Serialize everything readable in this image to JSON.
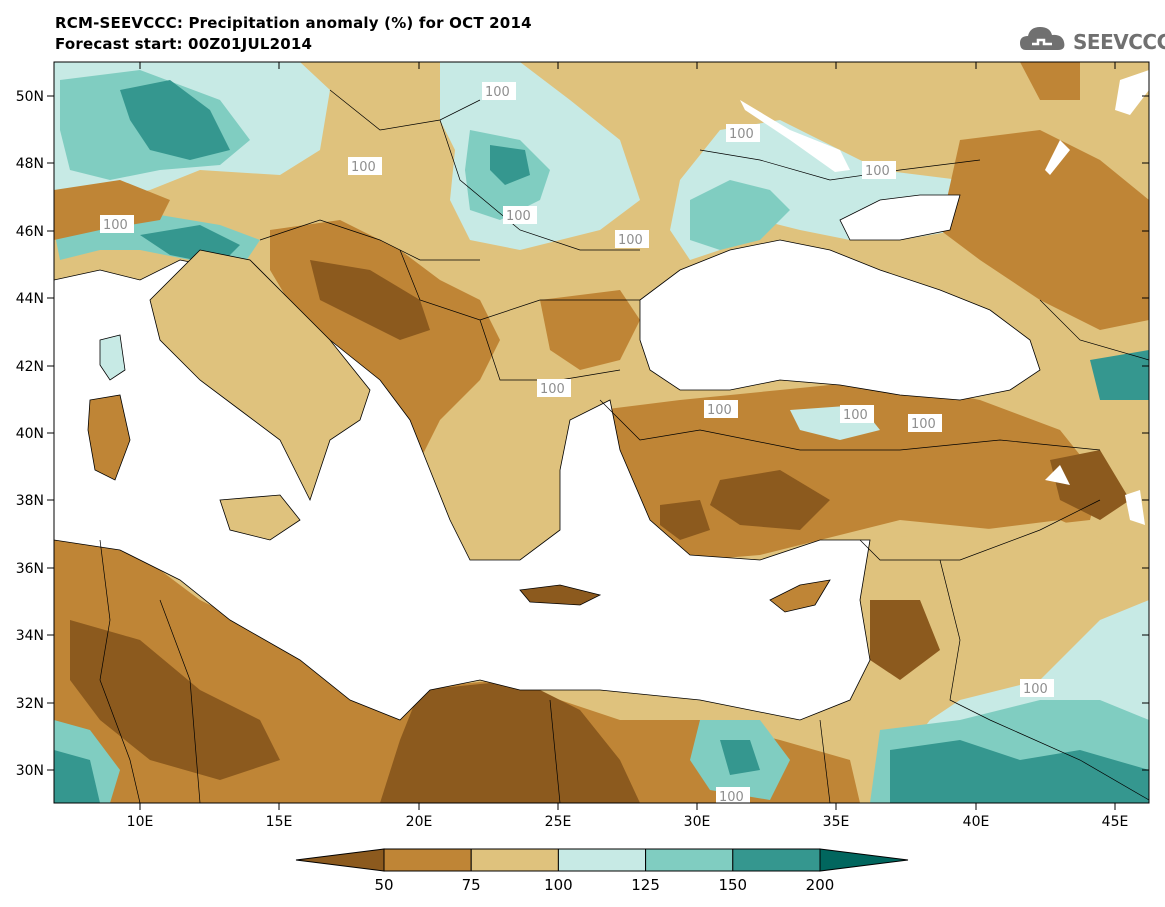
{
  "header": {
    "title": "RCM-SEEVCCC: Precipitation anomaly (%) for OCT 2014",
    "subtitle": "Forecast start: 00Z01JUL2014",
    "logo_text": "SEEVCCC",
    "logo_icon": "cloud-icon"
  },
  "map": {
    "lat_labels": [
      "50N",
      "48N",
      "46N",
      "44N",
      "42N",
      "40N",
      "38N",
      "36N",
      "34N",
      "32N",
      "30N"
    ],
    "lon_labels": [
      "10E",
      "15E",
      "20E",
      "25E",
      "30E",
      "35E",
      "40E",
      "45E"
    ],
    "contour_label": "100"
  },
  "colorbar": {
    "levels": [
      "50",
      "75",
      "100",
      "125",
      "150",
      "200"
    ],
    "colors": [
      "#8c5a1e",
      "#bf8536",
      "#dfc27d",
      "#c7eae5",
      "#80cdc1",
      "#35978f",
      "#01665e"
    ]
  }
}
